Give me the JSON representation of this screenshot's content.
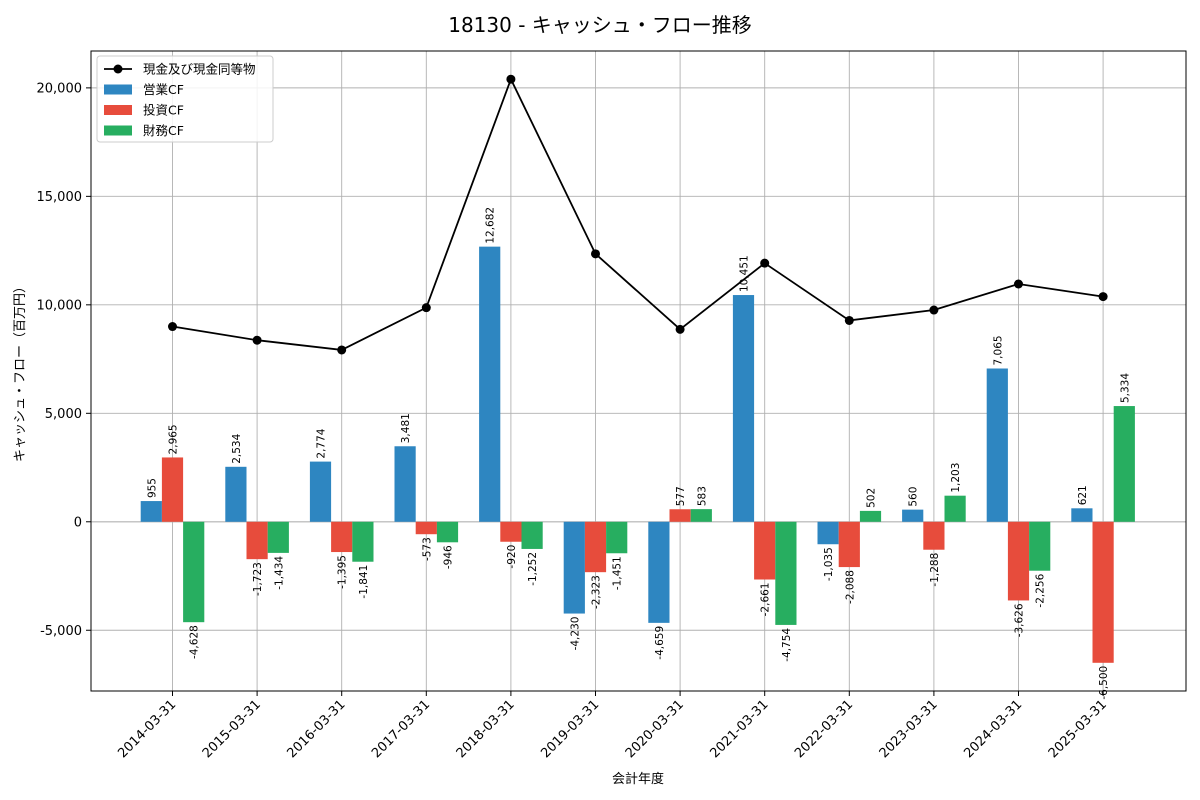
{
  "chart_data": {
    "type": "bar",
    "title": "18130 - キャッシュ・フロー推移",
    "xlabel": "会計年度",
    "ylabel": "キャッシュ・フロー（百万円）",
    "ylim": [
      -7800,
      21700
    ],
    "yticks": [
      -5000,
      0,
      5000,
      10000,
      15000,
      20000
    ],
    "ytick_labels": [
      "-5,000",
      "0",
      "5,000",
      "10,000",
      "15,000",
      "20,000"
    ],
    "grid": true,
    "legend_position": "top-left",
    "categories": [
      "2014-03-31",
      "2015-03-31",
      "2016-03-31",
      "2017-03-31",
      "2018-03-31",
      "2019-03-31",
      "2020-03-31",
      "2021-03-31",
      "2022-03-31",
      "2023-03-31",
      "2024-03-31",
      "2025-03-31"
    ],
    "series": [
      {
        "name": "営業CF",
        "type": "bar",
        "color": "#2e86c1",
        "values": [
          955,
          2534,
          2774,
          3481,
          12682,
          -4230,
          -4659,
          10451,
          -1035,
          560,
          7065,
          621
        ],
        "labels": [
          "955",
          "2,534",
          "2,774",
          "3,481",
          "12,682",
          "-4,230",
          "-4,659",
          "10,451",
          "-1,035",
          "560",
          "7,065",
          "621"
        ]
      },
      {
        "name": "投資CF",
        "type": "bar",
        "color": "#e74c3c",
        "values": [
          2965,
          -1723,
          -1395,
          -573,
          -920,
          -2323,
          577,
          -2661,
          -2088,
          -1288,
          -3626,
          -6500
        ],
        "labels": [
          "2,965",
          "-1,723",
          "-1,395",
          "-573",
          "-920",
          "-2,323",
          "577",
          "-2,661",
          "-2,088",
          "-1,288",
          "-3,626",
          "-6,500"
        ]
      },
      {
        "name": "財務CF",
        "type": "bar",
        "color": "#27ae60",
        "values": [
          -4628,
          -1434,
          -1841,
          -946,
          -1252,
          -1451,
          583,
          -4754,
          502,
          1203,
          -2256,
          5334
        ],
        "labels": [
          "-4,628",
          "-1,434",
          "-1,841",
          "-946",
          "-1,252",
          "-1,451",
          "583",
          "-4,754",
          "502",
          "1,203",
          "-2,256",
          "5,334"
        ]
      },
      {
        "name": "現金及び現金同等物",
        "type": "line",
        "color": "#000000",
        "values": [
          9000,
          8370,
          7920,
          9870,
          20400,
          12350,
          8870,
          11920,
          9280,
          9760,
          10960,
          10380
        ]
      }
    ]
  }
}
